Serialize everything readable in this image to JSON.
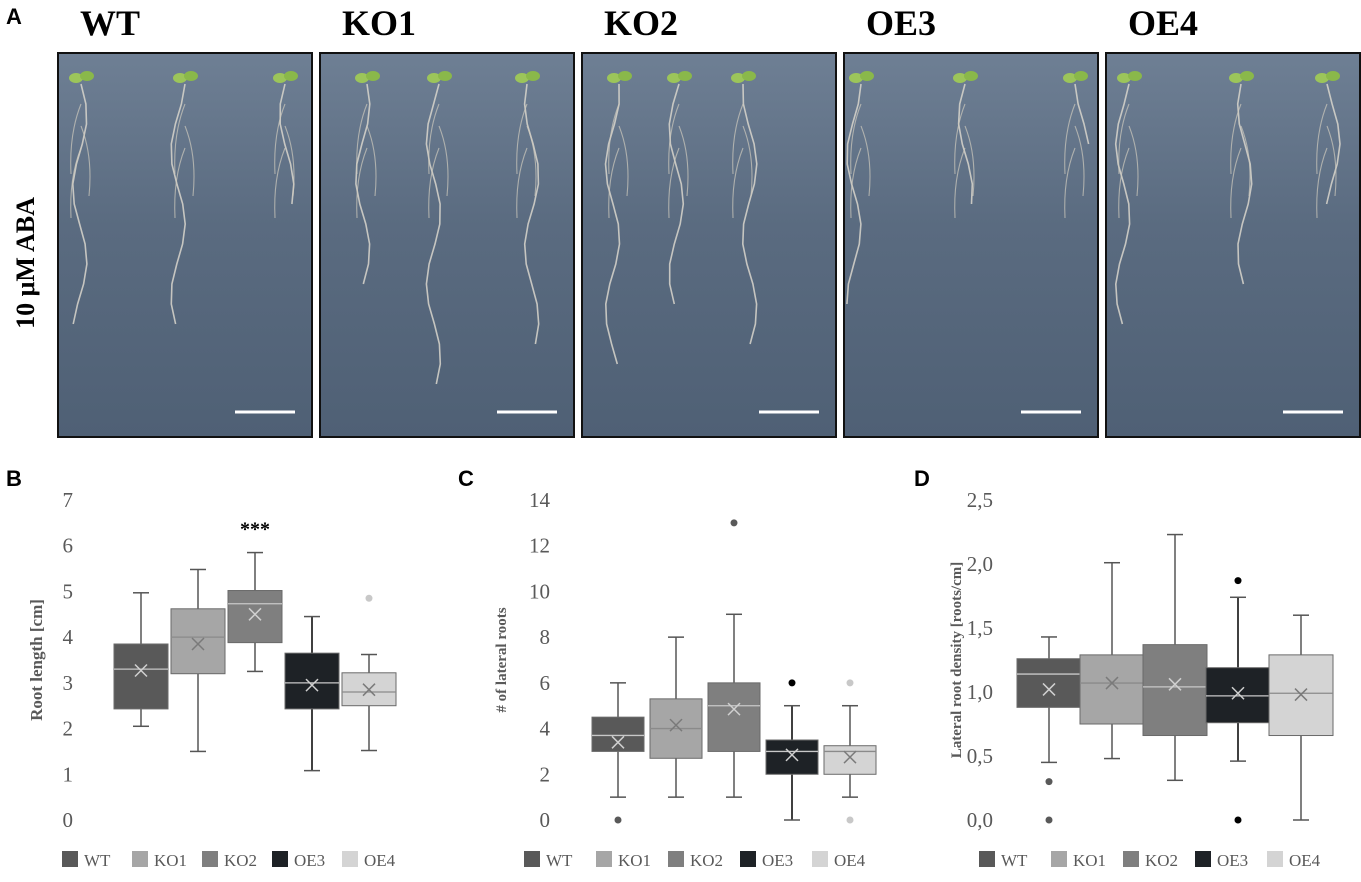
{
  "panels": {
    "a": "A",
    "b": "B",
    "c": "C",
    "d": "D"
  },
  "genotypes": [
    "WT",
    "KO1",
    "KO2",
    "OE3",
    "OE4"
  ],
  "condition_label": "10 μM ABA",
  "colors": {
    "WT": "#595959",
    "KO1": "#a6a6a6",
    "KO2": "#7f7f7f",
    "OE3": "#1e2226",
    "OE4": "#d4d4d4"
  },
  "chart_data": [
    {
      "panel": "B",
      "type": "box",
      "ylabel": "Root length [cm]",
      "ylim": [
        0,
        7
      ],
      "yticks": [
        "0",
        "1",
        "2",
        "3",
        "4",
        "5",
        "6",
        "7"
      ],
      "annotation": "***",
      "series": [
        {
          "name": "WT",
          "min": 2.05,
          "q1": 2.43,
          "median": 3.3,
          "q3": 3.85,
          "max": 4.97,
          "mean": 3.27,
          "outliers": []
        },
        {
          "name": "KO1",
          "min": 1.5,
          "q1": 3.2,
          "median": 4.0,
          "q3": 4.62,
          "max": 5.48,
          "mean": 3.85,
          "outliers": []
        },
        {
          "name": "KO2",
          "min": 3.25,
          "q1": 3.88,
          "median": 4.73,
          "q3": 5.02,
          "max": 5.85,
          "mean": 4.5,
          "outliers": []
        },
        {
          "name": "OE3",
          "min": 1.08,
          "q1": 2.43,
          "median": 3.0,
          "q3": 3.65,
          "max": 4.45,
          "mean": 2.95,
          "outliers": []
        },
        {
          "name": "OE4",
          "min": 1.52,
          "q1": 2.5,
          "median": 2.8,
          "q3": 3.22,
          "max": 3.62,
          "mean": 2.85,
          "outliers": [
            4.85
          ]
        }
      ]
    },
    {
      "panel": "C",
      "type": "box",
      "ylabel": "# of lateral roots",
      "ylim": [
        0,
        14
      ],
      "yticks": [
        "0",
        "2",
        "4",
        "6",
        "8",
        "10",
        "12",
        "14"
      ],
      "series": [
        {
          "name": "WT",
          "min": 1,
          "q1": 3,
          "median": 3.7,
          "q3": 4.5,
          "max": 6,
          "mean": 3.4,
          "outliers": [
            0
          ]
        },
        {
          "name": "KO1",
          "min": 1,
          "q1": 2.7,
          "median": 4,
          "q3": 5.3,
          "max": 8,
          "mean": 4.15,
          "outliers": []
        },
        {
          "name": "KO2",
          "min": 1,
          "q1": 3,
          "median": 5,
          "q3": 6,
          "max": 9,
          "mean": 4.85,
          "outliers": [
            13
          ]
        },
        {
          "name": "OE3",
          "min": 0,
          "q1": 2,
          "median": 3,
          "q3": 3.5,
          "max": 5,
          "mean": 2.85,
          "outliers": [
            6
          ]
        },
        {
          "name": "OE4",
          "min": 1,
          "q1": 2,
          "median": 3,
          "q3": 3.25,
          "max": 5,
          "mean": 2.75,
          "outliers": [
            6,
            0
          ]
        }
      ]
    },
    {
      "panel": "D",
      "type": "box",
      "ylabel": "Lateral root density  [roots/cm]",
      "ylim": [
        0,
        2.5
      ],
      "yticks": [
        "0,0",
        "0,5",
        "1,0",
        "1,5",
        "2,0",
        "2,5"
      ],
      "series": [
        {
          "name": "WT",
          "min": 0.45,
          "q1": 0.88,
          "median": 1.14,
          "q3": 1.26,
          "max": 1.43,
          "mean": 1.02,
          "outliers": [
            0.3,
            0.0
          ]
        },
        {
          "name": "KO1",
          "min": 0.48,
          "q1": 0.75,
          "median": 1.07,
          "q3": 1.29,
          "max": 2.01,
          "mean": 1.07,
          "outliers": []
        },
        {
          "name": "KO2",
          "min": 0.31,
          "q1": 0.66,
          "median": 1.04,
          "q3": 1.37,
          "max": 2.23,
          "mean": 1.06,
          "outliers": []
        },
        {
          "name": "OE3",
          "min": 0.46,
          "q1": 0.76,
          "median": 0.97,
          "q3": 1.19,
          "max": 1.74,
          "mean": 0.99,
          "outliers": [
            1.87,
            0.0
          ]
        },
        {
          "name": "OE4",
          "min": 0.0,
          "q1": 0.66,
          "median": 0.99,
          "q3": 1.29,
          "max": 1.6,
          "mean": 0.98,
          "outliers": []
        }
      ]
    }
  ]
}
